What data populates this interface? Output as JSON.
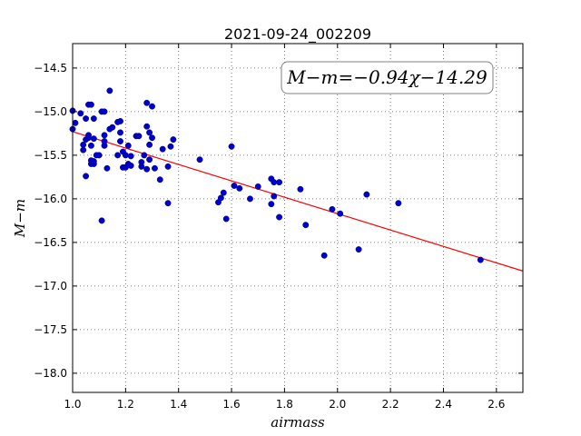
{
  "chart_data": {
    "type": "scatter",
    "title": "2021-09-24_002209",
    "xlabel": "airmass",
    "ylabel": "M−m",
    "xlim": [
      1.0,
      2.7
    ],
    "ylim": [
      -18.22,
      -14.22
    ],
    "y_inverted": false,
    "xticks": [
      1.0,
      1.2,
      1.4,
      1.6,
      1.8,
      2.0,
      2.2,
      2.4,
      2.6
    ],
    "xtick_labels": [
      "1.0",
      "1.2",
      "1.4",
      "1.6",
      "1.8",
      "2.0",
      "2.2",
      "2.4",
      "2.6"
    ],
    "yticks": [
      -14.5,
      -15.0,
      -15.5,
      -16.0,
      -16.5,
      -17.0,
      -17.5,
      -18.0
    ],
    "ytick_labels": [
      "−14.5",
      "−15.0",
      "−15.5",
      "−16.0",
      "−16.5",
      "−17.0",
      "−17.5",
      "−18.0"
    ],
    "grid": true,
    "annotation": "M−m=−0.94χ−14.29",
    "point_color": "#0000cc",
    "fit_color": "#ff0000",
    "fit": {
      "slope": -0.94,
      "intercept": -14.29
    },
    "points": [
      [
        1.0,
        -14.99
      ],
      [
        1.0,
        -15.2
      ],
      [
        1.01,
        -15.13
      ],
      [
        1.03,
        -15.02
      ],
      [
        1.04,
        -15.38
      ],
      [
        1.04,
        -15.44
      ],
      [
        1.05,
        -15.74
      ],
      [
        1.05,
        -15.32
      ],
      [
        1.05,
        -15.08
      ],
      [
        1.06,
        -15.27
      ],
      [
        1.06,
        -14.92
      ],
      [
        1.06,
        -15.3
      ],
      [
        1.07,
        -14.92
      ],
      [
        1.07,
        -15.39
      ],
      [
        1.07,
        -15.56
      ],
      [
        1.07,
        -15.6
      ],
      [
        1.08,
        -15.08
      ],
      [
        1.08,
        -15.31
      ],
      [
        1.08,
        -15.6
      ],
      [
        1.08,
        -15.57
      ],
      [
        1.09,
        -15.5
      ],
      [
        1.1,
        -15.5
      ],
      [
        1.11,
        -15.0
      ],
      [
        1.11,
        -16.25
      ],
      [
        1.12,
        -15.0
      ],
      [
        1.12,
        -15.34
      ],
      [
        1.12,
        -15.27
      ],
      [
        1.12,
        -15.39
      ],
      [
        1.13,
        -15.65
      ],
      [
        1.14,
        -15.2
      ],
      [
        1.14,
        -14.76
      ],
      [
        1.15,
        -15.18
      ],
      [
        1.17,
        -15.12
      ],
      [
        1.17,
        -15.5
      ],
      [
        1.18,
        -15.11
      ],
      [
        1.18,
        -15.24
      ],
      [
        1.18,
        -15.34
      ],
      [
        1.19,
        -15.46
      ],
      [
        1.19,
        -15.64
      ],
      [
        1.2,
        -15.5
      ],
      [
        1.2,
        -15.64
      ],
      [
        1.21,
        -15.6
      ],
      [
        1.21,
        -15.39
      ],
      [
        1.22,
        -15.51
      ],
      [
        1.22,
        -15.62
      ],
      [
        1.24,
        -15.28
      ],
      [
        1.25,
        -15.28
      ],
      [
        1.26,
        -15.58
      ],
      [
        1.26,
        -15.63
      ],
      [
        1.27,
        -15.5
      ],
      [
        1.28,
        -15.66
      ],
      [
        1.28,
        -14.9
      ],
      [
        1.28,
        -15.17
      ],
      [
        1.29,
        -15.38
      ],
      [
        1.29,
        -15.55
      ],
      [
        1.29,
        -15.24
      ],
      [
        1.3,
        -14.94
      ],
      [
        1.3,
        -15.3
      ],
      [
        1.31,
        -15.65
      ],
      [
        1.33,
        -15.78
      ],
      [
        1.34,
        -15.43
      ],
      [
        1.36,
        -15.63
      ],
      [
        1.36,
        -16.05
      ],
      [
        1.37,
        -15.4
      ],
      [
        1.38,
        -15.32
      ],
      [
        1.48,
        -15.55
      ],
      [
        1.55,
        -16.04
      ],
      [
        1.56,
        -15.99
      ],
      [
        1.57,
        -15.93
      ],
      [
        1.58,
        -16.23
      ],
      [
        1.6,
        -15.4
      ],
      [
        1.61,
        -15.85
      ],
      [
        1.63,
        -15.88
      ],
      [
        1.67,
        -16.0
      ],
      [
        1.7,
        -15.86
      ],
      [
        1.75,
        -16.06
      ],
      [
        1.75,
        -15.77
      ],
      [
        1.76,
        -15.81
      ],
      [
        1.76,
        -15.97
      ],
      [
        1.78,
        -15.81
      ],
      [
        1.78,
        -16.21
      ],
      [
        1.86,
        -15.89
      ],
      [
        1.88,
        -16.3
      ],
      [
        1.95,
        -16.65
      ],
      [
        1.98,
        -16.12
      ],
      [
        2.01,
        -16.17
      ],
      [
        2.08,
        -16.58
      ],
      [
        2.11,
        -15.95
      ],
      [
        2.23,
        -16.05
      ],
      [
        2.54,
        -16.7
      ]
    ]
  }
}
